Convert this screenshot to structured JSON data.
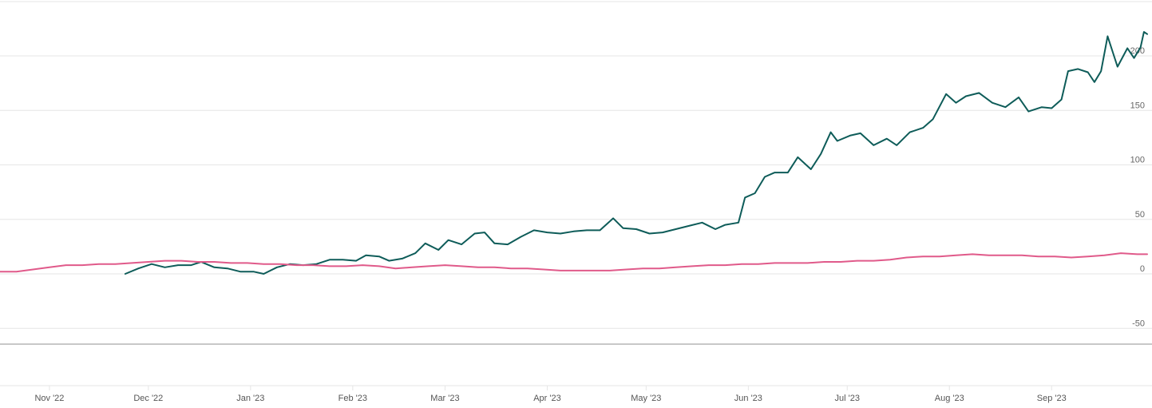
{
  "chart_data": {
    "type": "line",
    "title": "",
    "xlabel": "",
    "ylabel": "",
    "ylim": [
      -50,
      225
    ],
    "yticks": [
      200,
      150,
      100,
      50,
      0,
      -50
    ],
    "ytick_labels": [
      "200",
      "150",
      "100",
      "50",
      "0",
      "-50"
    ],
    "xlim": [
      "2022-10-17",
      "2023-09-30"
    ],
    "xticks": [
      {
        "label": "Nov '22",
        "date": "2022-11-01"
      },
      {
        "label": "Dec '22",
        "date": "2022-12-01"
      },
      {
        "label": "Jan '23",
        "date": "2023-01-01"
      },
      {
        "label": "Feb '23",
        "date": "2023-02-01"
      },
      {
        "label": "Mar '23",
        "date": "2023-03-01"
      },
      {
        "label": "Apr '23",
        "date": "2023-04-01"
      },
      {
        "label": "May '23",
        "date": "2023-05-01"
      },
      {
        "label": "Jun '23",
        "date": "2023-06-01"
      },
      {
        "label": "Jul '23",
        "date": "2023-07-01"
      },
      {
        "label": "Aug '23",
        "date": "2023-08-01"
      },
      {
        "label": "Sep '23",
        "date": "2023-09-01"
      }
    ],
    "grid": true,
    "series": [
      {
        "color": "#0e5c59",
        "points": [
          [
            "2022-11-24",
            0
          ],
          [
            "2022-11-28",
            5
          ],
          [
            "2022-12-02",
            9
          ],
          [
            "2022-12-06",
            6
          ],
          [
            "2022-12-10",
            8
          ],
          [
            "2022-12-14",
            8
          ],
          [
            "2022-12-17",
            11
          ],
          [
            "2022-12-21",
            6
          ],
          [
            "2022-12-25",
            5
          ],
          [
            "2022-12-29",
            2
          ],
          [
            "2023-01-02",
            2
          ],
          [
            "2023-01-05",
            0
          ],
          [
            "2023-01-09",
            6
          ],
          [
            "2023-01-13",
            9
          ],
          [
            "2023-01-17",
            8
          ],
          [
            "2023-01-21",
            9
          ],
          [
            "2023-01-25",
            13
          ],
          [
            "2023-01-29",
            13
          ],
          [
            "2023-02-02",
            12
          ],
          [
            "2023-02-05",
            17
          ],
          [
            "2023-02-09",
            16
          ],
          [
            "2023-02-12",
            12
          ],
          [
            "2023-02-16",
            14
          ],
          [
            "2023-02-20",
            19
          ],
          [
            "2023-02-23",
            28
          ],
          [
            "2023-02-27",
            22
          ],
          [
            "2023-03-02",
            31
          ],
          [
            "2023-03-06",
            27
          ],
          [
            "2023-03-10",
            37
          ],
          [
            "2023-03-13",
            38
          ],
          [
            "2023-03-16",
            28
          ],
          [
            "2023-03-20",
            27
          ],
          [
            "2023-03-24",
            34
          ],
          [
            "2023-03-28",
            40
          ],
          [
            "2023-04-01",
            38
          ],
          [
            "2023-04-05",
            37
          ],
          [
            "2023-04-09",
            39
          ],
          [
            "2023-04-13",
            40
          ],
          [
            "2023-04-17",
            40
          ],
          [
            "2023-04-21",
            51
          ],
          [
            "2023-04-24",
            42
          ],
          [
            "2023-04-28",
            41
          ],
          [
            "2023-05-02",
            37
          ],
          [
            "2023-05-06",
            38
          ],
          [
            "2023-05-10",
            41
          ],
          [
            "2023-05-14",
            44
          ],
          [
            "2023-05-18",
            47
          ],
          [
            "2023-05-22",
            41
          ],
          [
            "2023-05-25",
            45
          ],
          [
            "2023-05-29",
            47
          ],
          [
            "2023-05-31",
            70
          ],
          [
            "2023-06-03",
            74
          ],
          [
            "2023-06-06",
            89
          ],
          [
            "2023-06-09",
            93
          ],
          [
            "2023-06-13",
            93
          ],
          [
            "2023-06-16",
            107
          ],
          [
            "2023-06-20",
            96
          ],
          [
            "2023-06-23",
            110
          ],
          [
            "2023-06-26",
            130
          ],
          [
            "2023-06-28",
            122
          ],
          [
            "2023-07-02",
            127
          ],
          [
            "2023-07-05",
            129
          ],
          [
            "2023-07-09",
            118
          ],
          [
            "2023-07-13",
            124
          ],
          [
            "2023-07-16",
            118
          ],
          [
            "2023-07-20",
            130
          ],
          [
            "2023-07-24",
            134
          ],
          [
            "2023-07-27",
            142
          ],
          [
            "2023-07-31",
            165
          ],
          [
            "2023-08-03",
            157
          ],
          [
            "2023-08-06",
            163
          ],
          [
            "2023-08-10",
            166
          ],
          [
            "2023-08-14",
            157
          ],
          [
            "2023-08-18",
            153
          ],
          [
            "2023-08-22",
            162
          ],
          [
            "2023-08-25",
            149
          ],
          [
            "2023-08-29",
            153
          ],
          [
            "2023-09-01",
            152
          ],
          [
            "2023-09-04",
            160
          ],
          [
            "2023-09-06",
            186
          ],
          [
            "2023-09-09",
            188
          ],
          [
            "2023-09-12",
            185
          ],
          [
            "2023-09-14",
            176
          ],
          [
            "2023-09-16",
            186
          ],
          [
            "2023-09-18",
            218
          ],
          [
            "2023-09-21",
            190
          ],
          [
            "2023-09-24",
            207
          ],
          [
            "2023-09-26",
            198
          ],
          [
            "2023-09-28",
            208
          ],
          [
            "2023-09-29",
            222
          ],
          [
            "2023-09-30",
            220
          ]
        ]
      },
      {
        "color": "#e05a8a",
        "points": [
          [
            "2022-10-17",
            2
          ],
          [
            "2022-10-22",
            2
          ],
          [
            "2022-10-27",
            4
          ],
          [
            "2022-11-01",
            6
          ],
          [
            "2022-11-06",
            8
          ],
          [
            "2022-11-11",
            8
          ],
          [
            "2022-11-16",
            9
          ],
          [
            "2022-11-21",
            9
          ],
          [
            "2022-11-26",
            10
          ],
          [
            "2022-12-01",
            11
          ],
          [
            "2022-12-06",
            12
          ],
          [
            "2022-12-11",
            12
          ],
          [
            "2022-12-16",
            11
          ],
          [
            "2022-12-21",
            11
          ],
          [
            "2022-12-26",
            10
          ],
          [
            "2022-12-31",
            10
          ],
          [
            "2023-01-05",
            9
          ],
          [
            "2023-01-10",
            9
          ],
          [
            "2023-01-15",
            8
          ],
          [
            "2023-01-20",
            8
          ],
          [
            "2023-01-25",
            7
          ],
          [
            "2023-01-30",
            7
          ],
          [
            "2023-02-04",
            8
          ],
          [
            "2023-02-09",
            7
          ],
          [
            "2023-02-14",
            5
          ],
          [
            "2023-02-19",
            6
          ],
          [
            "2023-02-24",
            7
          ],
          [
            "2023-03-01",
            8
          ],
          [
            "2023-03-06",
            7
          ],
          [
            "2023-03-11",
            6
          ],
          [
            "2023-03-16",
            6
          ],
          [
            "2023-03-21",
            5
          ],
          [
            "2023-03-26",
            5
          ],
          [
            "2023-03-31",
            4
          ],
          [
            "2023-04-05",
            3
          ],
          [
            "2023-04-10",
            3
          ],
          [
            "2023-04-15",
            3
          ],
          [
            "2023-04-20",
            3
          ],
          [
            "2023-04-25",
            4
          ],
          [
            "2023-04-30",
            5
          ],
          [
            "2023-05-05",
            5
          ],
          [
            "2023-05-10",
            6
          ],
          [
            "2023-05-15",
            7
          ],
          [
            "2023-05-20",
            8
          ],
          [
            "2023-05-25",
            8
          ],
          [
            "2023-05-30",
            9
          ],
          [
            "2023-06-04",
            9
          ],
          [
            "2023-06-09",
            10
          ],
          [
            "2023-06-14",
            10
          ],
          [
            "2023-06-19",
            10
          ],
          [
            "2023-06-24",
            11
          ],
          [
            "2023-06-29",
            11
          ],
          [
            "2023-07-04",
            12
          ],
          [
            "2023-07-09",
            12
          ],
          [
            "2023-07-14",
            13
          ],
          [
            "2023-07-19",
            15
          ],
          [
            "2023-07-24",
            16
          ],
          [
            "2023-07-29",
            16
          ],
          [
            "2023-08-03",
            17
          ],
          [
            "2023-08-08",
            18
          ],
          [
            "2023-08-13",
            17
          ],
          [
            "2023-08-18",
            17
          ],
          [
            "2023-08-23",
            17
          ],
          [
            "2023-08-28",
            16
          ],
          [
            "2023-09-02",
            16
          ],
          [
            "2023-09-07",
            15
          ],
          [
            "2023-09-12",
            16
          ],
          [
            "2023-09-17",
            17
          ],
          [
            "2023-09-22",
            19
          ],
          [
            "2023-09-27",
            18
          ],
          [
            "2023-09-30",
            18
          ]
        ]
      }
    ]
  }
}
